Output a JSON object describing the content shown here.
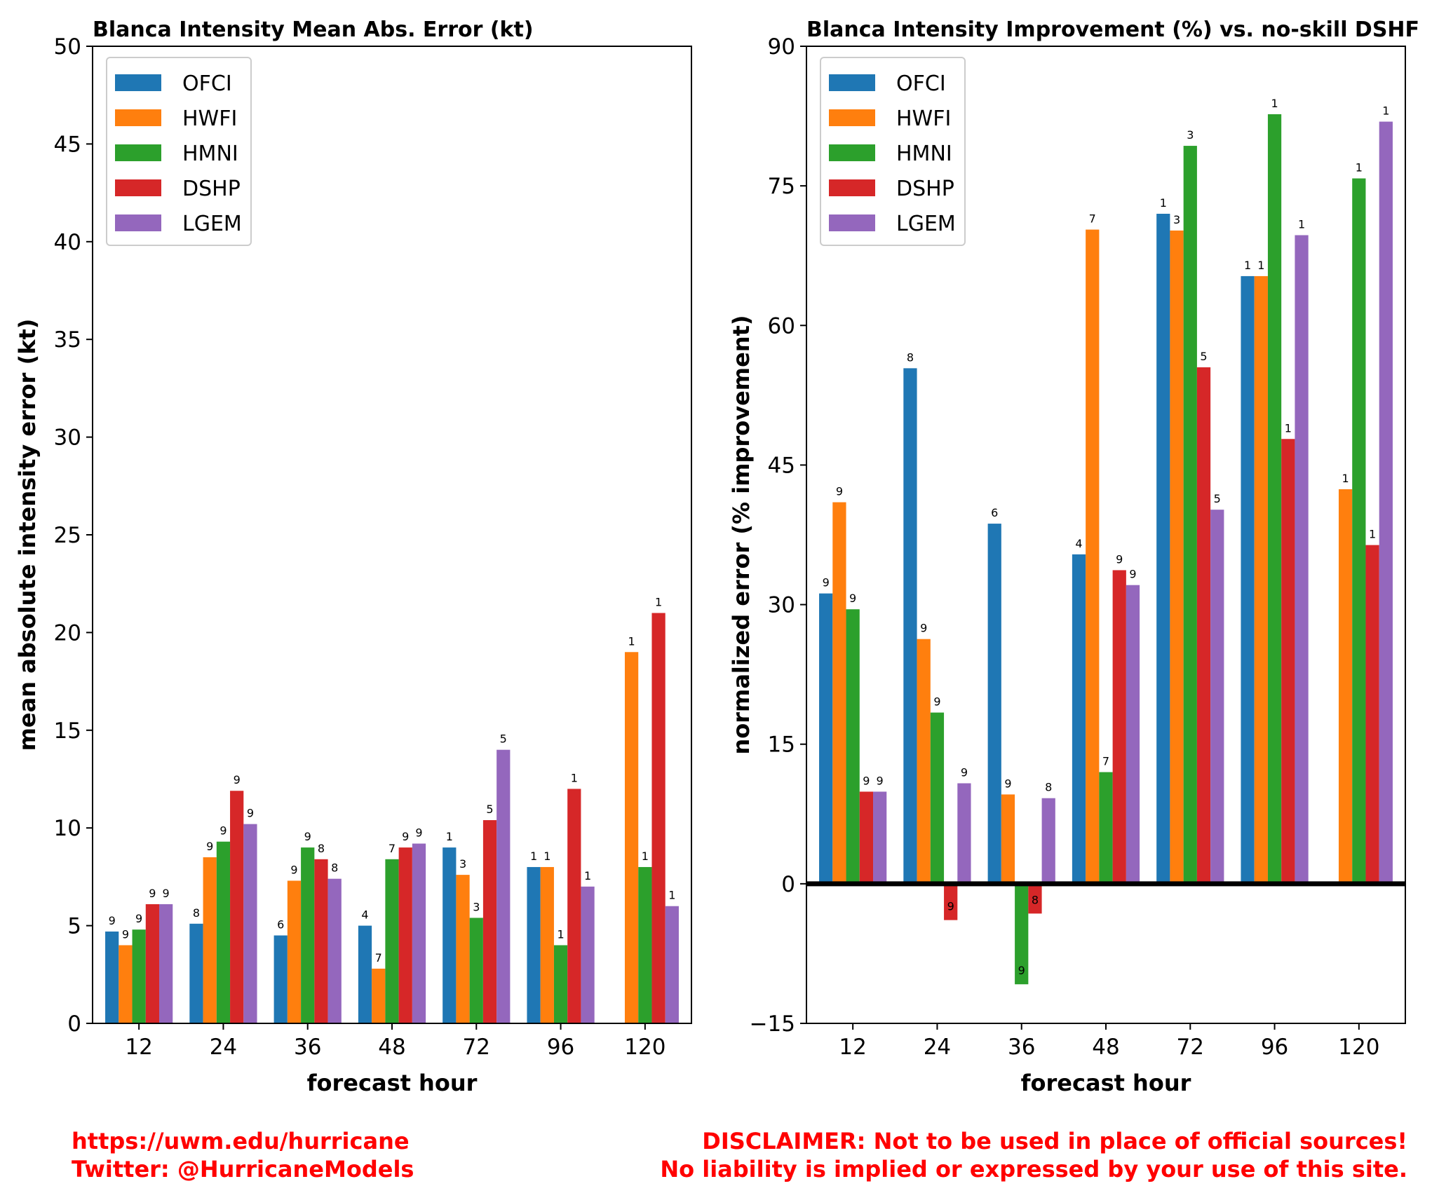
{
  "footer": {
    "left_line1": "https://uwm.edu/hurricane",
    "left_line2": "Twitter: @HurricaneModels",
    "right_line1": "DISCLAIMER: Not to be used in place of official sources!",
    "right_line2": "No liability is implied or expressed by your use of this site."
  },
  "colors": {
    "OFCI": "#1f77b4",
    "HWFI": "#ff7f0e",
    "HMNI": "#2ca02c",
    "DSHP": "#d62728",
    "LGEM": "#9467bd"
  },
  "chart_data": [
    {
      "type": "bar",
      "title": "Blanca Intensity Mean Abs. Error (kt)",
      "xlabel": "forecast hour",
      "ylabel": "mean absolute intensity error (kt)",
      "categories": [
        "12",
        "24",
        "36",
        "48",
        "72",
        "96",
        "120"
      ],
      "ylim": [
        0,
        50
      ],
      "yticks": [
        0,
        5,
        10,
        15,
        20,
        25,
        30,
        35,
        40,
        45,
        50
      ],
      "legend_position": "top-left",
      "grid": false,
      "series": [
        {
          "name": "OFCI",
          "values": [
            4.7,
            5.1,
            4.5,
            5.0,
            9.0,
            8.0,
            null
          ],
          "labels": [
            "9",
            "8",
            "6",
            "4",
            "1",
            "1",
            ""
          ]
        },
        {
          "name": "HWFI",
          "values": [
            4.0,
            8.5,
            7.3,
            2.8,
            7.6,
            8.0,
            19.0
          ],
          "labels": [
            "9",
            "9",
            "9",
            "7",
            "3",
            "1",
            "1"
          ]
        },
        {
          "name": "HMNI",
          "values": [
            4.8,
            9.3,
            9.0,
            8.4,
            5.4,
            4.0,
            8.0
          ],
          "labels": [
            "9",
            "9",
            "9",
            "7",
            "3",
            "1",
            "1"
          ]
        },
        {
          "name": "DSHP",
          "values": [
            6.1,
            11.9,
            8.4,
            9.0,
            10.4,
            12.0,
            21.0
          ],
          "labels": [
            "9",
            "9",
            "8",
            "9",
            "5",
            "1",
            "1"
          ]
        },
        {
          "name": "LGEM",
          "values": [
            6.1,
            10.2,
            7.4,
            9.2,
            14.0,
            7.0,
            6.0
          ],
          "labels": [
            "9",
            "9",
            "8",
            "9",
            "5",
            "1",
            "1"
          ]
        }
      ]
    },
    {
      "type": "bar",
      "title": "Blanca Intensity Improvement (%) vs. no-skill DSHF",
      "xlabel": "forecast hour",
      "ylabel": "normalized error (% improvement)",
      "categories": [
        "12",
        "24",
        "36",
        "48",
        "72",
        "96",
        "120"
      ],
      "ylim": [
        -15,
        90
      ],
      "yticks": [
        -15,
        0,
        15,
        30,
        45,
        60,
        75,
        90
      ],
      "ytick_labels": [
        "−15",
        "0",
        "15",
        "30",
        "45",
        "60",
        "75",
        "90"
      ],
      "zero_line": true,
      "legend_position": "top-left",
      "grid": false,
      "series": [
        {
          "name": "OFCI",
          "values": [
            31.2,
            55.4,
            38.7,
            35.4,
            72.0,
            65.3,
            null
          ],
          "labels": [
            "9",
            "8",
            "6",
            "4",
            "1",
            "1",
            ""
          ]
        },
        {
          "name": "HWFI",
          "values": [
            41.0,
            26.3,
            9.6,
            70.3,
            70.2,
            65.3,
            42.4
          ],
          "labels": [
            "9",
            "9",
            "9",
            "7",
            "3",
            "1",
            "1"
          ]
        },
        {
          "name": "HMNI",
          "values": [
            29.5,
            18.4,
            -10.8,
            12.0,
            79.3,
            82.7,
            75.8
          ],
          "labels": [
            "9",
            "9",
            "9",
            "7",
            "3",
            "1",
            "1"
          ]
        },
        {
          "name": "DSHP",
          "values": [
            9.9,
            -3.9,
            -3.2,
            33.7,
            55.5,
            47.8,
            36.4
          ],
          "labels": [
            "9",
            "9",
            "8",
            "9",
            "5",
            "1",
            "1"
          ]
        },
        {
          "name": "LGEM",
          "values": [
            9.9,
            10.8,
            9.2,
            32.1,
            40.2,
            69.7,
            81.9
          ],
          "labels": [
            "9",
            "9",
            "8",
            "9",
            "5",
            "1",
            "1"
          ]
        }
      ]
    }
  ]
}
